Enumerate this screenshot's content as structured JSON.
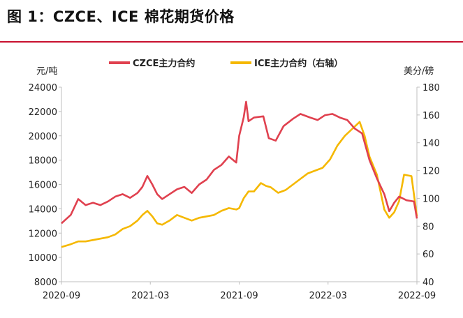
{
  "title": "图 1：CZCE、ICE 棉花期货价格",
  "chart_data": {
    "type": "line",
    "left_axis_unit": "元/吨",
    "right_axis_unit": "美分/磅",
    "y_left": {
      "min": 8000,
      "max": 24000,
      "ticks": [
        "8000",
        "10000",
        "12000",
        "14000",
        "16000",
        "18000",
        "20000",
        "22000",
        "24000"
      ]
    },
    "y_right": {
      "min": 40,
      "max": 180,
      "ticks": [
        "40",
        "60",
        "80",
        "100",
        "120",
        "140",
        "160",
        "180"
      ]
    },
    "x_range": [
      "2020-09",
      "2022-09"
    ],
    "x_ticks": [
      "2020-09",
      "2021-03",
      "2021-09",
      "2022-03",
      "2022-09"
    ],
    "legend_position": "top",
    "series": [
      {
        "name": "CZCE主力合约",
        "axis": "left",
        "color": "#e0414f",
        "points": [
          [
            "2020-09",
            12800
          ],
          [
            "2020-09-20",
            13500
          ],
          [
            "2020-10-05",
            14800
          ],
          [
            "2020-10-20",
            14300
          ],
          [
            "2020-11-05",
            14500
          ],
          [
            "2020-11-20",
            14300
          ],
          [
            "2020-12-05",
            14600
          ],
          [
            "2020-12-20",
            15000
          ],
          [
            "2021-01-05",
            15200
          ],
          [
            "2021-01-20",
            14900
          ],
          [
            "2021-02-05",
            15300
          ],
          [
            "2021-02-15",
            15800
          ],
          [
            "2021-02-25",
            16700
          ],
          [
            "2021-03-05",
            16000
          ],
          [
            "2021-03-15",
            15200
          ],
          [
            "2021-03-25",
            14800
          ],
          [
            "2021-04-10",
            15200
          ],
          [
            "2021-04-25",
            15600
          ],
          [
            "2021-05-10",
            15800
          ],
          [
            "2021-05-25",
            15300
          ],
          [
            "2021-06-10",
            16000
          ],
          [
            "2021-06-25",
            16400
          ],
          [
            "2021-07-10",
            17200
          ],
          [
            "2021-07-25",
            17600
          ],
          [
            "2021-08-10",
            18300
          ],
          [
            "2021-08-25",
            17800
          ],
          [
            "2021-09-01",
            20000
          ],
          [
            "2021-09-10",
            21500
          ],
          [
            "2021-09-15",
            22800
          ],
          [
            "2021-09-20",
            21200
          ],
          [
            "2021-10-01",
            21500
          ],
          [
            "2021-10-20",
            21600
          ],
          [
            "2021-11-01",
            19800
          ],
          [
            "2021-11-15",
            19600
          ],
          [
            "2021-12-01",
            20800
          ],
          [
            "2021-12-20",
            21400
          ],
          [
            "2022-01-05",
            21800
          ],
          [
            "2022-01-25",
            21500
          ],
          [
            "2022-02-10",
            21300
          ],
          [
            "2022-02-25",
            21700
          ],
          [
            "2022-03-10",
            21800
          ],
          [
            "2022-03-25",
            21500
          ],
          [
            "2022-04-10",
            21300
          ],
          [
            "2022-04-25",
            20600
          ],
          [
            "2022-05-10",
            20200
          ],
          [
            "2022-05-25",
            18000
          ],
          [
            "2022-06-10",
            16500
          ],
          [
            "2022-06-25",
            15200
          ],
          [
            "2022-07-05",
            13800
          ],
          [
            "2022-07-15",
            14500
          ],
          [
            "2022-07-25",
            15000
          ],
          [
            "2022-08-10",
            14700
          ],
          [
            "2022-08-25",
            14600
          ],
          [
            "2022-09",
            13200
          ]
        ]
      },
      {
        "name": "ICE主力合约（右轴）",
        "axis": "right",
        "color": "#f5b800",
        "points": [
          [
            "2020-09",
            65
          ],
          [
            "2020-09-20",
            67
          ],
          [
            "2020-10-05",
            69
          ],
          [
            "2020-10-20",
            69
          ],
          [
            "2020-11-05",
            70
          ],
          [
            "2020-11-20",
            71
          ],
          [
            "2020-12-05",
            72
          ],
          [
            "2020-12-20",
            74
          ],
          [
            "2021-01-05",
            78
          ],
          [
            "2021-01-20",
            80
          ],
          [
            "2021-02-05",
            84
          ],
          [
            "2021-02-15",
            88
          ],
          [
            "2021-02-25",
            91
          ],
          [
            "2021-03-05",
            87
          ],
          [
            "2021-03-15",
            82
          ],
          [
            "2021-03-25",
            81
          ],
          [
            "2021-04-10",
            84
          ],
          [
            "2021-04-25",
            88
          ],
          [
            "2021-05-10",
            86
          ],
          [
            "2021-05-25",
            84
          ],
          [
            "2021-06-10",
            86
          ],
          [
            "2021-06-25",
            87
          ],
          [
            "2021-07-10",
            88
          ],
          [
            "2021-07-25",
            91
          ],
          [
            "2021-08-10",
            93
          ],
          [
            "2021-08-25",
            92
          ],
          [
            "2021-09-01",
            93
          ],
          [
            "2021-09-10",
            100
          ],
          [
            "2021-09-20",
            105
          ],
          [
            "2021-10-01",
            105
          ],
          [
            "2021-10-15",
            111
          ],
          [
            "2021-10-25",
            109
          ],
          [
            "2021-11-05",
            108
          ],
          [
            "2021-11-20",
            104
          ],
          [
            "2021-12-05",
            106
          ],
          [
            "2021-12-20",
            110
          ],
          [
            "2022-01-05",
            114
          ],
          [
            "2022-01-20",
            118
          ],
          [
            "2022-02-05",
            120
          ],
          [
            "2022-02-20",
            122
          ],
          [
            "2022-03-05",
            128
          ],
          [
            "2022-03-20",
            138
          ],
          [
            "2022-04-05",
            145
          ],
          [
            "2022-04-20",
            150
          ],
          [
            "2022-05-05",
            155
          ],
          [
            "2022-05-15",
            145
          ],
          [
            "2022-05-25",
            130
          ],
          [
            "2022-06-10",
            117
          ],
          [
            "2022-06-25",
            92
          ],
          [
            "2022-07-05",
            86
          ],
          [
            "2022-07-15",
            90
          ],
          [
            "2022-07-25",
            98
          ],
          [
            "2022-08-05",
            117
          ],
          [
            "2022-08-20",
            116
          ],
          [
            "2022-09",
            87
          ]
        ]
      }
    ]
  }
}
